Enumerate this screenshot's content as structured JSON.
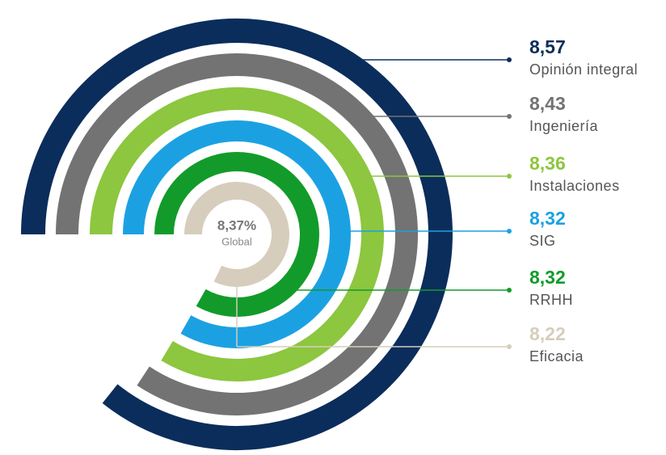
{
  "chart_data": {
    "type": "radial_bar",
    "center_value": 8.37,
    "center_value_label": "8,37%",
    "center_label": "Global",
    "rlim": [
      0,
      10
    ],
    "series": [
      {
        "name": "Opinión integral",
        "color": "#0b2d5b",
        "value": 8.57,
        "value_label": "8,57"
      },
      {
        "name": "Ingeniería",
        "color": "#737373",
        "value": 8.43,
        "value_label": "8,43"
      },
      {
        "name": "Instalaciones",
        "color": "#8dc63f",
        "value": 8.36,
        "value_label": "8,36"
      },
      {
        "name": "SIG",
        "color": "#1ba1e2",
        "value": 8.32,
        "value_label": "8,32"
      },
      {
        "name": "RRHH",
        "color": "#129b2a",
        "value": 8.32,
        "value_label": "8,32"
      },
      {
        "name": "Eficacia",
        "color": "#d6cdbd",
        "value": 8.22,
        "value_label": "8,22"
      }
    ]
  }
}
